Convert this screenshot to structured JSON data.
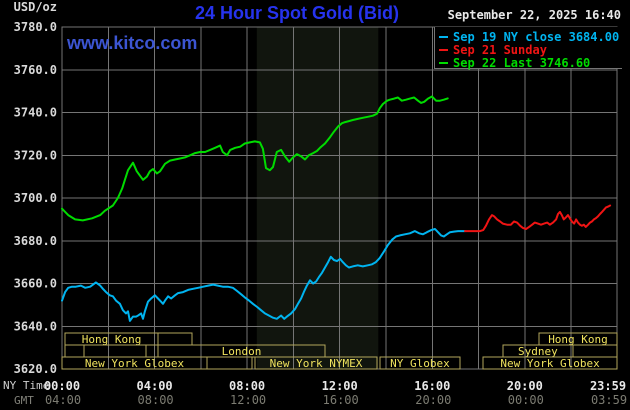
{
  "header": {
    "unit_label": "USD/oz",
    "title": "24 Hour Spot Gold (Bid)",
    "datetime": "September 22, 2025 16:40",
    "watermark": "www.kitco.com",
    "legend": [
      {
        "label": "Sep 19 NY close 3684.00",
        "color": "#00b4f0"
      },
      {
        "label": "Sep 21 Sunday",
        "color": "#f01414"
      },
      {
        "label": "Sep 22 Last 3746.60",
        "color": "#00dc00"
      }
    ]
  },
  "axes": {
    "ny_time_label": "NY Time",
    "gmt_label": "GMT",
    "tick_minutes": [
      0,
      240,
      480,
      720,
      960,
      1200,
      1439
    ],
    "ny_tick_labels": [
      "00:00",
      "04:00",
      "08:00",
      "12:00",
      "16:00",
      "20:00",
      "23:59"
    ],
    "gmt_tick_labels": [
      "04:00",
      "08:00",
      "12:00",
      "16:00",
      "20:00",
      "00:00",
      "03:59"
    ],
    "ny_tick_color": "#e9e9e9",
    "gmt_tick_color": "#7c7c72",
    "y_tick_color": "#d9d9d9",
    "grid_color": "#757575"
  },
  "sessions": {
    "border_color": "#b2a65c",
    "text_color": "#f0e35e",
    "rows": [
      {
        "boxes": [
          {
            "start": 8,
            "end": 249,
            "label": "Hong Kong"
          },
          {
            "start": 249,
            "end": 337,
            "label": ""
          },
          {
            "start": 1237,
            "end": 1439,
            "label": "Hong Kong"
          }
        ]
      },
      {
        "boxes": [
          {
            "start": 8,
            "end": 57,
            "label": ""
          },
          {
            "start": 57,
            "end": 218,
            "label": ""
          },
          {
            "start": 218,
            "end": 249,
            "label": ""
          },
          {
            "start": 249,
            "end": 682,
            "label": "London"
          },
          {
            "start": 1143,
            "end": 1325,
            "label": "Sydney"
          },
          {
            "start": 1325,
            "end": 1439,
            "label": ""
          }
        ]
      },
      {
        "boxes": [
          {
            "start": 0,
            "end": 376,
            "label": "New York Globex"
          },
          {
            "start": 376,
            "end": 493,
            "label": ""
          },
          {
            "start": 500,
            "end": 817,
            "label": "New York NYMEX"
          },
          {
            "start": 824,
            "end": 1032,
            "label": "NY Globex"
          },
          {
            "start": 1092,
            "end": 1439,
            "label": "New York Globex"
          }
        ]
      }
    ]
  },
  "chart_data": {
    "type": "line",
    "title": "24 Hour Spot Gold (Bid)",
    "xlabel": "NY Time",
    "ylabel": "USD/oz",
    "x_range_minutes": [
      0,
      1439
    ],
    "y_axis": {
      "min": 3620,
      "max": 3780,
      "step": 20
    },
    "grid": true,
    "nymex_band_minutes": {
      "start": 505,
      "end": 820,
      "color": "#11150e"
    },
    "series": [
      {
        "name": "Sep 19 NY close",
        "color": "#00b4f0",
        "close_value": 3684.0,
        "points": [
          [
            0,
            3652
          ],
          [
            8,
            3656
          ],
          [
            16,
            3658
          ],
          [
            26,
            3658.5
          ],
          [
            36,
            3658.5
          ],
          [
            49,
            3659
          ],
          [
            60,
            3658
          ],
          [
            73,
            3658.5
          ],
          [
            88,
            3660.5
          ],
          [
            99,
            3659
          ],
          [
            106,
            3657.5
          ],
          [
            114,
            3656
          ],
          [
            124,
            3654.5
          ],
          [
            132,
            3654
          ],
          [
            140,
            3652
          ],
          [
            150,
            3650.5
          ],
          [
            158,
            3647.5
          ],
          [
            166,
            3646
          ],
          [
            171,
            3647
          ],
          [
            176,
            3642.5
          ],
          [
            184,
            3644.5
          ],
          [
            192,
            3644.5
          ],
          [
            197,
            3645
          ],
          [
            205,
            3646
          ],
          [
            210,
            3643.5
          ],
          [
            215,
            3647
          ],
          [
            223,
            3651.5
          ],
          [
            231,
            3653
          ],
          [
            241,
            3654.5
          ],
          [
            249,
            3653
          ],
          [
            257,
            3651.5
          ],
          [
            262,
            3650.5
          ],
          [
            267,
            3652
          ],
          [
            275,
            3654
          ],
          [
            283,
            3653
          ],
          [
            293,
            3654.5
          ],
          [
            301,
            3655.5
          ],
          [
            314,
            3656
          ],
          [
            327,
            3657
          ],
          [
            340,
            3657.5
          ],
          [
            353,
            3658
          ],
          [
            366,
            3658.5
          ],
          [
            379,
            3659
          ],
          [
            392,
            3659.5
          ],
          [
            404,
            3659
          ],
          [
            417,
            3658.5
          ],
          [
            430,
            3658.5
          ],
          [
            443,
            3658
          ],
          [
            454,
            3656.5
          ],
          [
            464,
            3655
          ],
          [
            474,
            3653.5
          ],
          [
            485,
            3652
          ],
          [
            495,
            3650.5
          ],
          [
            506,
            3649
          ],
          [
            516,
            3647.5
          ],
          [
            526,
            3646
          ],
          [
            537,
            3645
          ],
          [
            547,
            3644
          ],
          [
            557,
            3643.5
          ],
          [
            568,
            3645
          ],
          [
            576,
            3643.5
          ],
          [
            583,
            3644.5
          ],
          [
            594,
            3646
          ],
          [
            604,
            3648
          ],
          [
            612,
            3650.5
          ],
          [
            620,
            3653
          ],
          [
            627,
            3656
          ],
          [
            635,
            3659
          ],
          [
            643,
            3661.5
          ],
          [
            651,
            3660
          ],
          [
            659,
            3661
          ],
          [
            666,
            3663
          ],
          [
            674,
            3665
          ],
          [
            682,
            3667.5
          ],
          [
            690,
            3670
          ],
          [
            697,
            3672.5
          ],
          [
            705,
            3671
          ],
          [
            713,
            3670.5
          ],
          [
            721,
            3671.5
          ],
          [
            728,
            3670
          ],
          [
            736,
            3668.5
          ],
          [
            744,
            3667.5
          ],
          [
            754,
            3668
          ],
          [
            767,
            3668.5
          ],
          [
            780,
            3668
          ],
          [
            793,
            3668.5
          ],
          [
            804,
            3669
          ],
          [
            814,
            3670
          ],
          [
            824,
            3672
          ],
          [
            835,
            3675
          ],
          [
            845,
            3678
          ],
          [
            856,
            3680.5
          ],
          [
            866,
            3682
          ],
          [
            876,
            3682.5
          ],
          [
            889,
            3683
          ],
          [
            902,
            3683.5
          ],
          [
            915,
            3684.5
          ],
          [
            926,
            3683.5
          ],
          [
            936,
            3683
          ],
          [
            946,
            3684
          ],
          [
            957,
            3685
          ],
          [
            967,
            3685.5
          ],
          [
            975,
            3684
          ],
          [
            983,
            3682.5
          ],
          [
            990,
            3682
          ],
          [
            998,
            3683
          ],
          [
            1006,
            3684
          ],
          [
            1016,
            3684.3
          ],
          [
            1027,
            3684.5
          ],
          [
            1045,
            3684.5
          ]
        ]
      },
      {
        "name": "Sep 21 Sunday",
        "color": "#f01414",
        "points": [
          [
            1045,
            3684.5
          ],
          [
            1058,
            3684.5
          ],
          [
            1071,
            3684.5
          ],
          [
            1084,
            3684.5
          ],
          [
            1092,
            3685
          ],
          [
            1099,
            3687
          ],
          [
            1107,
            3690
          ],
          [
            1115,
            3692
          ],
          [
            1120,
            3691.5
          ],
          [
            1128,
            3690
          ],
          [
            1136,
            3689
          ],
          [
            1143,
            3688
          ],
          [
            1154,
            3687.5
          ],
          [
            1164,
            3687.5
          ],
          [
            1172,
            3689
          ],
          [
            1180,
            3688.5
          ],
          [
            1188,
            3687
          ],
          [
            1195,
            3686
          ],
          [
            1203,
            3685.5
          ],
          [
            1211,
            3686.5
          ],
          [
            1219,
            3687.5
          ],
          [
            1226,
            3688.5
          ],
          [
            1234,
            3688
          ],
          [
            1242,
            3687.5
          ],
          [
            1250,
            3688
          ],
          [
            1258,
            3688.5
          ],
          [
            1265,
            3687.5
          ],
          [
            1273,
            3688.5
          ],
          [
            1281,
            3690
          ],
          [
            1286,
            3692.5
          ],
          [
            1291,
            3693.5
          ],
          [
            1296,
            3692
          ],
          [
            1301,
            3690
          ],
          [
            1307,
            3691
          ],
          [
            1312,
            3692
          ],
          [
            1317,
            3690.5
          ],
          [
            1322,
            3689
          ],
          [
            1328,
            3688
          ],
          [
            1333,
            3690
          ],
          [
            1338,
            3688.5
          ],
          [
            1343,
            3687.5
          ],
          [
            1348,
            3687
          ],
          [
            1353,
            3687.5
          ],
          [
            1358,
            3686.5
          ],
          [
            1364,
            3687.5
          ],
          [
            1369,
            3688.5
          ],
          [
            1374,
            3689
          ],
          [
            1379,
            3690
          ],
          [
            1384,
            3690.5
          ],
          [
            1390,
            3691.5
          ],
          [
            1395,
            3692.5
          ],
          [
            1400,
            3693.5
          ],
          [
            1405,
            3694.5
          ],
          [
            1410,
            3695.5
          ],
          [
            1416,
            3696
          ],
          [
            1421,
            3696.5
          ]
        ]
      },
      {
        "name": "Sep 22",
        "color": "#00dc00",
        "last_value": 3746.6,
        "points": [
          [
            0,
            3695
          ],
          [
            16,
            3692
          ],
          [
            34,
            3690
          ],
          [
            54,
            3689.5
          ],
          [
            78,
            3690.5
          ],
          [
            99,
            3692
          ],
          [
            111,
            3694
          ],
          [
            132,
            3696.5
          ],
          [
            145,
            3700
          ],
          [
            156,
            3704.5
          ],
          [
            163,
            3708.5
          ],
          [
            171,
            3713
          ],
          [
            184,
            3716.5
          ],
          [
            194,
            3712.5
          ],
          [
            202,
            3710.5
          ],
          [
            210,
            3708.5
          ],
          [
            220,
            3710
          ],
          [
            228,
            3712.5
          ],
          [
            236,
            3713.5
          ],
          [
            246,
            3711.5
          ],
          [
            254,
            3712.5
          ],
          [
            267,
            3716
          ],
          [
            280,
            3717.5
          ],
          [
            293,
            3718
          ],
          [
            306,
            3718.5
          ],
          [
            319,
            3719
          ],
          [
            332,
            3720
          ],
          [
            345,
            3721
          ],
          [
            358,
            3721.5
          ],
          [
            371,
            3721.5
          ],
          [
            384,
            3722.5
          ],
          [
            397,
            3723.5
          ],
          [
            410,
            3724.5
          ],
          [
            417,
            3721.5
          ],
          [
            428,
            3720
          ],
          [
            436,
            3722.5
          ],
          [
            449,
            3723.5
          ],
          [
            462,
            3724
          ],
          [
            474,
            3725.5
          ],
          [
            487,
            3726
          ],
          [
            500,
            3726.5
          ],
          [
            513,
            3726
          ],
          [
            521,
            3723
          ],
          [
            529,
            3714
          ],
          [
            539,
            3713
          ],
          [
            547,
            3714.5
          ],
          [
            557,
            3721.5
          ],
          [
            568,
            3722.5
          ],
          [
            578,
            3719.5
          ],
          [
            589,
            3717
          ],
          [
            599,
            3719
          ],
          [
            609,
            3720.5
          ],
          [
            620,
            3719.5
          ],
          [
            630,
            3718
          ],
          [
            640,
            3720
          ],
          [
            651,
            3721
          ],
          [
            661,
            3722
          ],
          [
            669,
            3723.5
          ],
          [
            682,
            3725.5
          ],
          [
            695,
            3728.5
          ],
          [
            705,
            3731
          ],
          [
            716,
            3733.5
          ],
          [
            726,
            3735
          ],
          [
            734,
            3735.5
          ],
          [
            744,
            3736
          ],
          [
            754,
            3736.5
          ],
          [
            767,
            3737
          ],
          [
            780,
            3737.5
          ],
          [
            793,
            3738
          ],
          [
            806,
            3738.5
          ],
          [
            817,
            3739.5
          ],
          [
            824,
            3742
          ],
          [
            832,
            3744
          ],
          [
            843,
            3745.5
          ],
          [
            850,
            3746
          ],
          [
            861,
            3746.5
          ],
          [
            871,
            3747
          ],
          [
            881,
            3745.5
          ],
          [
            892,
            3746
          ],
          [
            902,
            3746.5
          ],
          [
            913,
            3747
          ],
          [
            923,
            3745.5
          ],
          [
            931,
            3744.5
          ],
          [
            939,
            3745
          ],
          [
            949,
            3746.5
          ],
          [
            959,
            3747.5
          ],
          [
            970,
            3745.5
          ],
          [
            980,
            3745.5
          ],
          [
            990,
            3746
          ],
          [
            1000,
            3746.6
          ]
        ]
      }
    ]
  }
}
